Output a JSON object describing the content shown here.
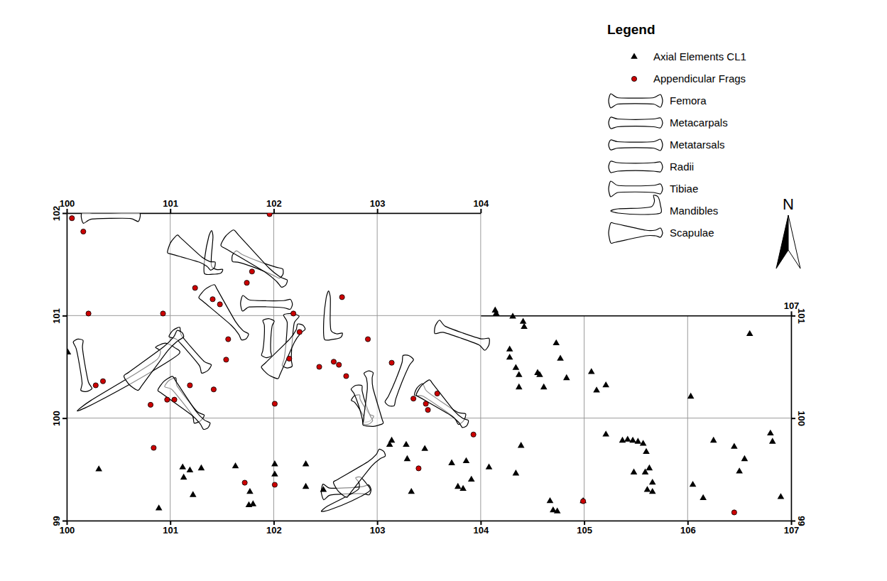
{
  "chart_data": {
    "type": "scatter",
    "legend_title": "Legend",
    "legend": "top-right",
    "grid": true,
    "annotations": [
      {
        "text": "N"
      }
    ],
    "xlim": [
      100,
      107
    ],
    "ylim": [
      99,
      102
    ],
    "xticks": [
      100,
      101,
      102,
      103,
      104,
      105,
      106,
      107
    ],
    "yticks": [
      99,
      100,
      101,
      102
    ],
    "x2lim": [
      100,
      104
    ],
    "x2ticks": [
      100,
      101,
      102,
      103,
      104,
      107
    ],
    "y2lim": [
      99,
      101
    ],
    "y2ticks": [
      99,
      100,
      101
    ],
    "series": [
      {
        "name": "Axial Elements CL1",
        "type": "scatter",
        "marker": "triangle",
        "color": "#000000",
        "x": [
          100.01,
          100.31,
          100.89,
          101.12,
          101.19,
          101.3,
          101.13,
          101.22,
          101.63,
          101.77,
          101.76,
          101.8,
          102.01,
          102.01,
          102.31,
          102.31,
          102.48,
          103.12,
          103.14,
          103.28,
          103.29,
          103.33,
          103.46,
          103.72,
          103.78,
          103.83,
          103.86,
          103.91,
          104.08,
          104.14,
          104.15,
          104.31,
          104.41,
          104.42,
          104.28,
          104.28,
          104.34,
          104.37,
          104.37,
          104.55,
          104.57,
          104.61,
          104.73,
          104.77,
          104.83,
          104.39,
          104.34,
          104.67,
          104.7,
          104.74,
          104.99,
          105.07,
          105.12,
          105.21,
          105.21,
          105.37,
          105.42,
          105.47,
          105.52,
          105.57,
          105.6,
          105.48,
          105.59,
          105.63,
          105.66,
          105.61,
          105.66,
          106.03,
          106.6,
          106.05,
          106.15,
          106.25,
          106.45,
          106.5,
          106.55,
          106.8,
          106.82,
          106.9
        ],
        "y": [
          100.64,
          99.5,
          99.12,
          99.52,
          99.49,
          99.51,
          99.42,
          99.25,
          99.53,
          99.28,
          99.15,
          99.16,
          99.55,
          99.45,
          99.55,
          99.33,
          99.3,
          99.74,
          99.78,
          99.74,
          99.6,
          99.28,
          99.7,
          99.56,
          99.33,
          99.31,
          99.58,
          99.4,
          99.52,
          101.05,
          101.02,
          100.99,
          100.94,
          100.89,
          100.67,
          100.59,
          100.49,
          100.42,
          100.3,
          100.44,
          100.42,
          100.3,
          100.73,
          100.58,
          100.39,
          99.73,
          99.46,
          99.19,
          99.1,
          99.09,
          99.19,
          100.45,
          100.27,
          100.32,
          99.84,
          99.78,
          99.79,
          99.78,
          99.77,
          99.75,
          99.67,
          99.47,
          99.47,
          99.51,
          99.37,
          99.3,
          99.28,
          100.21,
          100.82,
          99.35,
          99.22,
          99.78,
          99.72,
          99.48,
          99.6,
          99.85,
          99.77,
          99.23
        ]
      },
      {
        "name": "Appendicular Frags",
        "type": "scatter",
        "marker": "circle",
        "color": "#cc0000",
        "x": [
          100.05,
          100.16,
          100.21,
          100.93,
          101.24,
          101.41,
          101.48,
          101.74,
          101.79,
          101.96,
          102.19,
          102.25,
          102.15,
          101.56,
          101.54,
          101.42,
          101.19,
          100.97,
          101.04,
          100.81,
          100.84,
          100.28,
          100.35,
          102.01,
          102.44,
          102.58,
          102.63,
          102.7,
          102.91,
          102.66,
          103.14,
          103.35,
          103.47,
          103.58,
          103.49,
          103.93,
          103.4,
          101.72,
          102.01,
          104.99,
          106.45
        ],
        "y": [
          101.95,
          101.82,
          101.02,
          101.02,
          101.27,
          101.16,
          101.11,
          101.32,
          101.43,
          101.99,
          101.02,
          100.84,
          100.58,
          100.77,
          100.57,
          100.28,
          100.32,
          100.18,
          100.18,
          100.13,
          99.71,
          100.32,
          100.36,
          100.14,
          100.5,
          100.55,
          100.52,
          100.41,
          100.77,
          101.18,
          100.54,
          100.19,
          100.14,
          100.24,
          100.08,
          99.84,
          99.51,
          99.37,
          99.35,
          99.19,
          99.08
        ]
      },
      {
        "name": "Femora",
        "type": "segment",
        "marker": "femur",
        "color": "#000000",
        "x": [
          [
            100.16,
            100.69
          ],
          [
            101.04,
            101.35
          ],
          [
            101.0,
            101.28
          ],
          [
            103.4,
            103.82
          ],
          [
            103.58,
            104.06
          ]
        ],
        "y": [
          [
            101.97,
            101.98
          ],
          [
            100.84,
            100.48
          ],
          [
            100.35,
            99.99
          ],
          [
            100.28,
            99.99
          ],
          [
            100.89,
            100.72
          ]
        ]
      },
      {
        "name": "Metacarpals",
        "type": "segment",
        "marker": "metacarpal",
        "color": "#000000",
        "x": [
          [
            101.95,
            101.93
          ],
          [
            103.3,
            103.12
          ]
        ],
        "y": [
          [
            100.95,
            100.61
          ],
          [
            100.59,
            100.14
          ]
        ]
      },
      {
        "name": "Metatarsals",
        "type": "segment",
        "marker": "metatarsal",
        "color": "#000000",
        "x": [
          [
            100.11,
            100.19
          ],
          [
            102.79,
            102.92
          ]
        ],
        "y": [
          [
            100.75,
            100.28
          ],
          [
            100.2,
            99.99
          ]
        ]
      },
      {
        "name": "Radii",
        "type": "segment",
        "marker": "radius",
        "color": "#000000",
        "x": [
          [
            101.62,
            102.07
          ],
          [
            102.8,
            102.91
          ]
        ],
        "y": [
          [
            101.58,
            101.41
          ],
          [
            100.3,
            99.96
          ]
        ]
      },
      {
        "name": "Tibiae",
        "type": "segment",
        "marker": "tibia",
        "color": "#000000",
        "x": [
          [
            101.7,
            102.16
          ],
          [
            102.17,
            102.13
          ],
          [
            102.48,
            102.92
          ]
        ],
        "y": [
          [
            101.12,
            101.11
          ],
          [
            101.0,
            100.51
          ],
          [
            99.28,
            99.3
          ]
        ]
      },
      {
        "name": "Mandibles",
        "type": "segment",
        "marker": "mandible",
        "color": "#000000",
        "x": [
          [
            101.4,
            101.35
          ],
          [
            100.1,
            101.07
          ],
          [
            102.53,
            102.51
          ],
          [
            102.46,
            102.92
          ]
        ],
        "y": [
          [
            101.83,
            101.41
          ],
          [
            100.07,
            100.64
          ],
          [
            101.24,
            100.77
          ],
          [
            99.09,
            99.31
          ]
        ]
      },
      {
        "name": "Scapulae",
        "type": "segment",
        "marker": "scapula",
        "color": "#000000",
        "x": [
          [
            101.02,
            101.41
          ],
          [
            101.55,
            102.1
          ],
          [
            101.35,
            101.72
          ],
          [
            101.96,
            102.27
          ],
          [
            100.62,
            101.1
          ],
          [
            100.95,
            101.35
          ],
          [
            102.96,
            102.92
          ],
          [
            103.44,
            103.85
          ],
          [
            102.64,
            103.05
          ]
        ],
        "y": [
          [
            101.7,
            101.48
          ],
          [
            101.76,
            101.31
          ],
          [
            101.24,
            100.79
          ],
          [
            100.44,
            100.89
          ],
          [
            100.34,
            100.82
          ],
          [
            100.34,
            99.92
          ],
          [
            99.94,
            100.44
          ],
          [
            100.3,
            99.94
          ],
          [
            99.3,
            99.66
          ]
        ]
      }
    ]
  }
}
